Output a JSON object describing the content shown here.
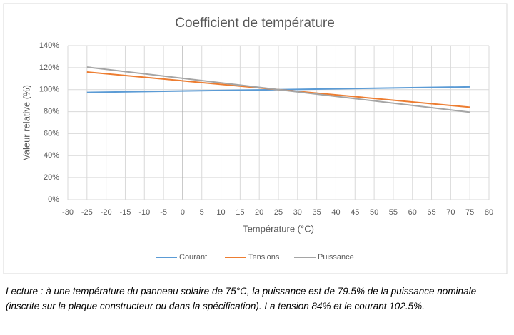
{
  "chart_data": {
    "type": "line",
    "title": "Coefficient de température",
    "x_label": "Température (°C)",
    "y_label": "Valeur relative (%)",
    "x": [
      -25,
      25,
      75
    ],
    "series": [
      {
        "name": "Courant",
        "color": "#5b9bd5",
        "values": [
          97.5,
          100,
          102.5
        ]
      },
      {
        "name": "Tensions",
        "color": "#ed7d31",
        "values": [
          116,
          100,
          84
        ]
      },
      {
        "name": "Puissance",
        "color": "#a5a5a5",
        "values": [
          120.5,
          100,
          79.5
        ]
      }
    ],
    "xlim": [
      -30,
      80
    ],
    "xticks": [
      -30,
      -25,
      -20,
      -15,
      -10,
      -5,
      0,
      5,
      10,
      15,
      20,
      25,
      30,
      35,
      40,
      45,
      50,
      55,
      60,
      65,
      70,
      75,
      80
    ],
    "ylim": [
      0,
      140
    ],
    "yticks": [
      {
        "value": 0,
        "label": "0%"
      },
      {
        "value": 20,
        "label": "20%"
      },
      {
        "value": 40,
        "label": "40%"
      },
      {
        "value": 60,
        "label": "60%"
      },
      {
        "value": 80,
        "label": "80%"
      },
      {
        "value": 100,
        "label": "100%"
      },
      {
        "value": 120,
        "label": "120%"
      },
      {
        "value": 140,
        "label": "140%"
      }
    ],
    "grid": true,
    "legend": "bottom"
  },
  "caption": "Lecture : à une température du panneau solaire de 75°C, la puissance est de 79.5% de la puissance nominale (inscrite sur la plaque constructeur ou dans la spécification). La tension 84% et le courant 102.5%."
}
